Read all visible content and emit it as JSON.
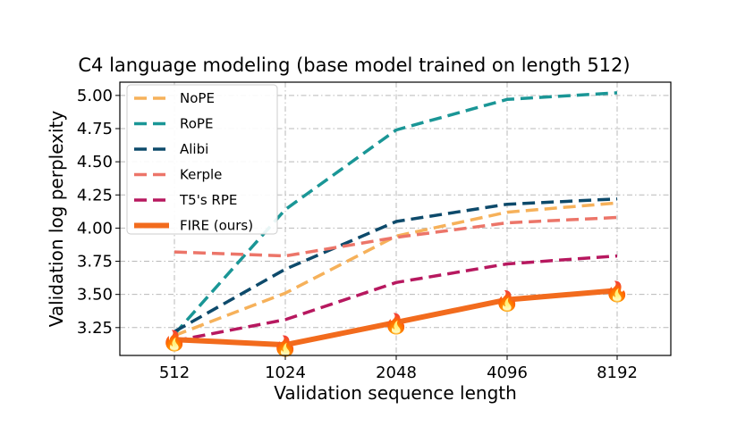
{
  "chart_data": {
    "type": "line",
    "title": "C4 language modeling (base model trained on length 512)",
    "xlabel": "Validation sequence length",
    "ylabel": "Validation log perplexity",
    "categories": [
      "512",
      "1024",
      "2048",
      "4096",
      "8192"
    ],
    "yticks": [
      "3.25",
      "3.50",
      "3.75",
      "4.00",
      "4.25",
      "4.50",
      "4.75",
      "5.00"
    ],
    "ylim": [
      3.04,
      5.1
    ],
    "grid": true,
    "legend_position": "top-left",
    "marker_glyph": "🔥",
    "series": [
      {
        "name": "NoPE",
        "color": "#f6b15a",
        "dashed": true,
        "values": [
          3.19,
          3.51,
          3.94,
          4.12,
          4.19
        ]
      },
      {
        "name": "RoPE",
        "color": "#1a9696",
        "dashed": true,
        "values": [
          3.2,
          4.14,
          4.74,
          4.97,
          5.02
        ]
      },
      {
        "name": "Alibi",
        "color": "#0d4a6b",
        "dashed": true,
        "values": [
          3.22,
          3.69,
          4.05,
          4.18,
          4.22
        ]
      },
      {
        "name": "Kerple",
        "color": "#ec7569",
        "dashed": true,
        "values": [
          3.82,
          3.79,
          3.93,
          4.04,
          4.08
        ]
      },
      {
        "name": "T5's RPE",
        "color": "#b7185f",
        "dashed": true,
        "values": [
          3.15,
          3.31,
          3.59,
          3.73,
          3.79
        ]
      },
      {
        "name": "FIRE (ours)",
        "color": "#f26b1d",
        "dashed": false,
        "values": [
          3.16,
          3.12,
          3.29,
          3.46,
          3.53
        ]
      }
    ]
  }
}
